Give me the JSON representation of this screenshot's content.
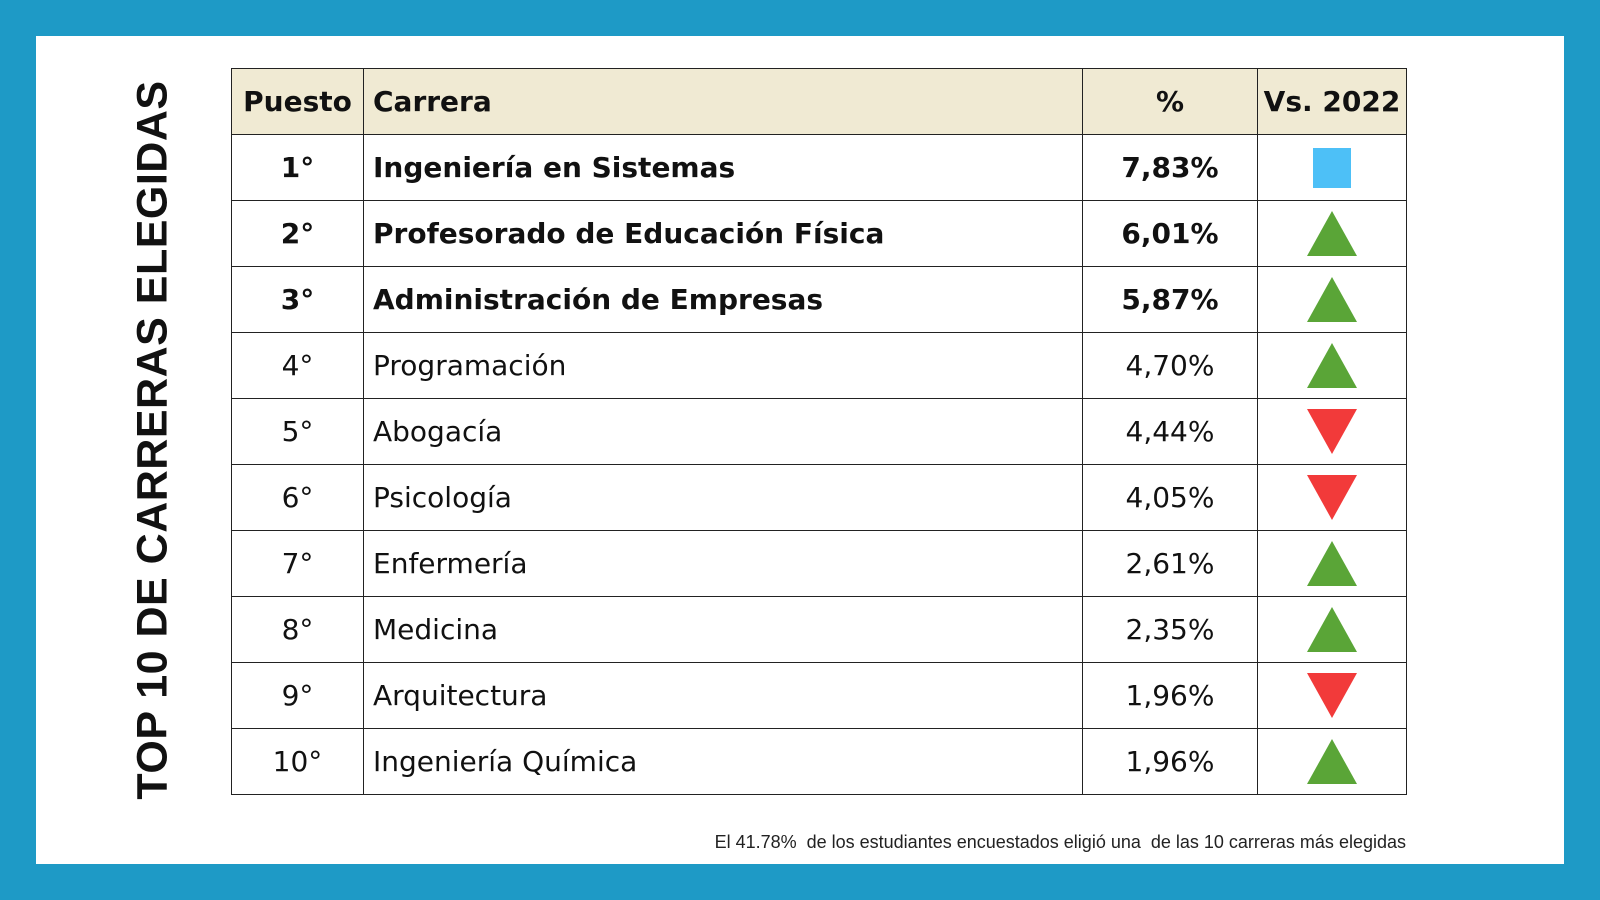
{
  "title": "TOP 10 DE CARRERAS ELEGIDAS",
  "table": {
    "headers": [
      "Puesto",
      "Carrera",
      "%",
      "Vs. 2022"
    ],
    "rows": [
      {
        "puesto": "1°",
        "carrera": "Ingeniería en Sistemas",
        "pct": "7,83%",
        "trend": "same",
        "bold": true
      },
      {
        "puesto": "2°",
        "carrera": "Profesorado de Educación Física",
        "pct": "6,01%",
        "trend": "up",
        "bold": true
      },
      {
        "puesto": "3°",
        "carrera": "Administración de Empresas",
        "pct": "5,87%",
        "trend": "up",
        "bold": true
      },
      {
        "puesto": "4°",
        "carrera": "Programación",
        "pct": "4,70%",
        "trend": "up",
        "bold": false
      },
      {
        "puesto": "5°",
        "carrera": "Abogacía",
        "pct": "4,44%",
        "trend": "down",
        "bold": false
      },
      {
        "puesto": "6°",
        "carrera": "Psicología",
        "pct": "4,05%",
        "trend": "down",
        "bold": false
      },
      {
        "puesto": "7°",
        "carrera": "Enfermería",
        "pct": "2,61%",
        "trend": "up",
        "bold": false
      },
      {
        "puesto": "8°",
        "carrera": "Medicina",
        "pct": "2,35%",
        "trend": "up",
        "bold": false
      },
      {
        "puesto": "9°",
        "carrera": "Arquitectura",
        "pct": "1,96%",
        "trend": "down",
        "bold": false
      },
      {
        "puesto": "10°",
        "carrera": "Ingeniería Química",
        "pct": "1,96%",
        "trend": "up",
        "bold": false
      }
    ]
  },
  "footnote": "El 41.78%  de los estudiantes encuestados eligió una  de las 10 carreras más elegidas",
  "colors": {
    "frame": "#1e9ac6",
    "header_bg": "#f0ead3",
    "up": "#5aa537",
    "down": "#f23a3a",
    "same": "#4dc0f7"
  }
}
